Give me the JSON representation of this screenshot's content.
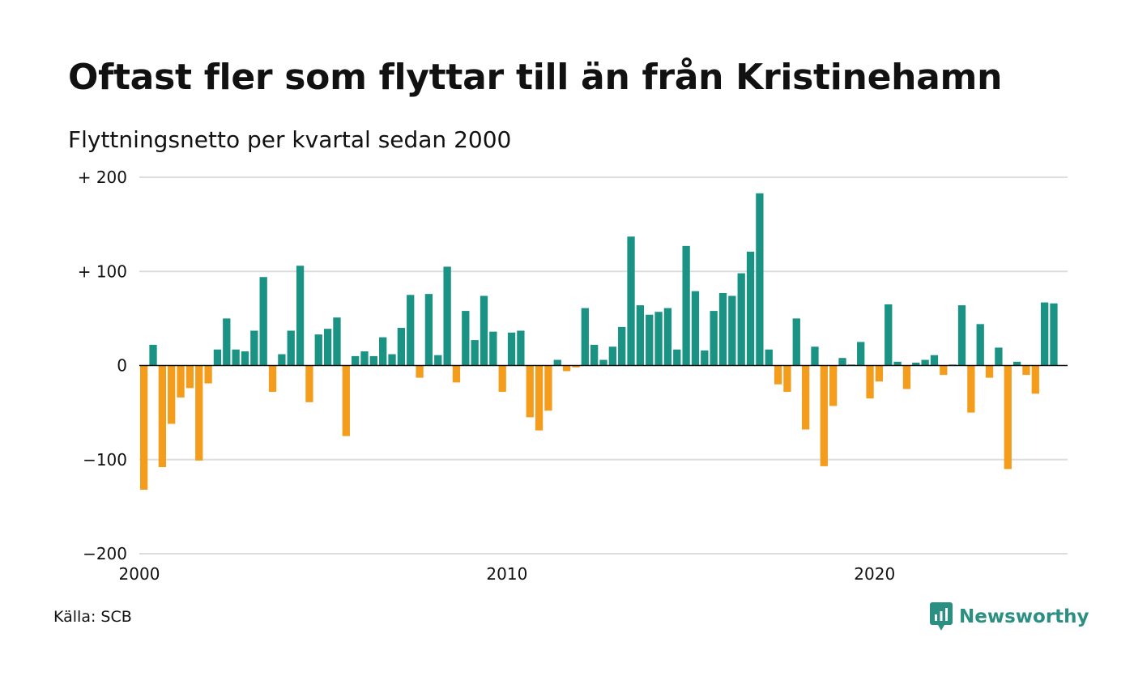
{
  "header": {
    "title": "Oftast fler som flyttar till än från Kristinehamn",
    "subtitle": "Flyttningsnetto per kvartal sedan 2000"
  },
  "footer": {
    "source": "Källa: SCB",
    "brand": "Newsworthy"
  },
  "colors": {
    "positive": "#1a9384",
    "negative": "#f49d1c",
    "grid": "#dddddd",
    "brand": "#2b8f82"
  },
  "chart_data": {
    "type": "bar",
    "title": "Oftast fler som flyttar till än från Kristinehamn",
    "subtitle": "Flyttningsnetto per kvartal sedan 2000",
    "x_start": 2000.0,
    "x_step": 0.25,
    "xlim": [
      2000,
      2025.25
    ],
    "ylim": [
      -200,
      200
    ],
    "y_ticks": [
      {
        "value": 200,
        "label": "+ 200"
      },
      {
        "value": 100,
        "label": "+ 100"
      },
      {
        "value": 0,
        "label": "0"
      },
      {
        "value": -100,
        "label": "−100"
      },
      {
        "value": -200,
        "label": "−200"
      }
    ],
    "x_ticks": [
      {
        "value": 2000,
        "label": "2000"
      },
      {
        "value": 2010,
        "label": "2010"
      },
      {
        "value": 2020,
        "label": "2020"
      }
    ],
    "grid": true,
    "values": [
      -132,
      22,
      -108,
      -62,
      -34,
      -24,
      -101,
      -19,
      17,
      50,
      17,
      15,
      37,
      94,
      -28,
      12,
      37,
      106,
      -39,
      33,
      39,
      51,
      -75,
      10,
      15,
      10,
      30,
      12,
      40,
      75,
      -13,
      76,
      11,
      105,
      -18,
      58,
      27,
      74,
      36,
      -28,
      35,
      37,
      -55,
      -69,
      -48,
      6,
      -6,
      -2,
      61,
      22,
      6,
      20,
      41,
      137,
      64,
      54,
      57,
      61,
      17,
      127,
      79,
      16,
      58,
      77,
      74,
      98,
      121,
      183,
      17,
      -20,
      -28,
      50,
      -68,
      20,
      -107,
      -43,
      8,
      1,
      25,
      -35,
      -17,
      65,
      4,
      -25,
      3,
      6,
      11,
      -10,
      1,
      64,
      -50,
      44,
      -13,
      19,
      -110,
      4,
      -10,
      -30,
      67,
      66
    ]
  }
}
